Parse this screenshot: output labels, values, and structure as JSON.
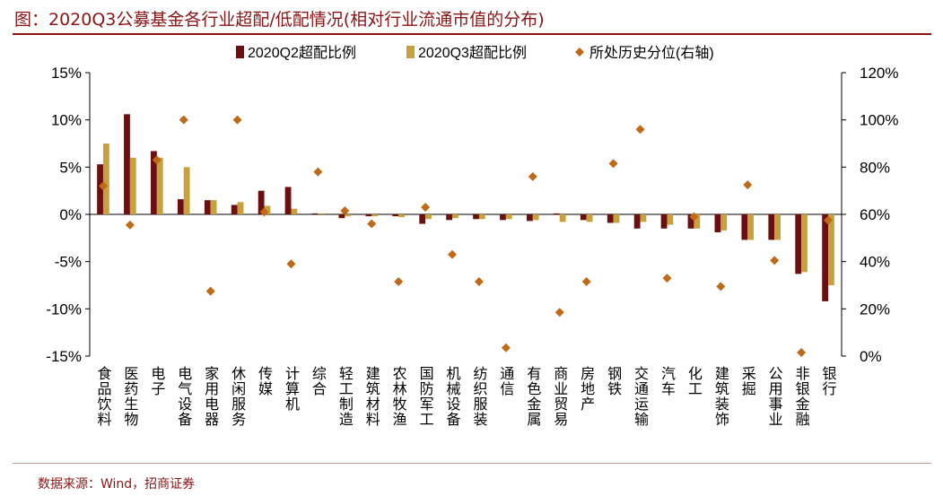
{
  "title": "图：2020Q3公募基金各行业超配/低配情况(相对行业流通市值的分布)",
  "source": "数据来源：Wind，招商证券",
  "colors": {
    "q2": "#6B0F11",
    "q3": "#C9A13C",
    "pct": "#C06A18",
    "title": "#8B1414",
    "axis": "#000000"
  },
  "chart_data": {
    "type": "bar",
    "categories": [
      "食品饮料",
      "医药生物",
      "电子",
      "电气设备",
      "家用电器",
      "休闲服务",
      "传媒",
      "计算机",
      "综合",
      "轻工制造",
      "建筑材料",
      "农林牧渔",
      "国防军工",
      "机械设备",
      "纺织服装",
      "通信",
      "有色金属",
      "商业贸易",
      "房地产",
      "钢铁",
      "交通运输",
      "汽车",
      "化工",
      "建筑装饰",
      "采掘",
      "公用事业",
      "非银金融",
      "银行"
    ],
    "series": [
      {
        "name": "2020Q2超配比例",
        "type": "bar",
        "axis": "left",
        "values": [
          5.3,
          10.6,
          6.7,
          1.6,
          1.5,
          1.0,
          2.5,
          2.9,
          0.1,
          -0.4,
          -0.2,
          -0.2,
          -1.0,
          -0.6,
          -0.5,
          -0.6,
          -0.7,
          0.1,
          -0.6,
          -0.9,
          -1.5,
          -1.5,
          -1.5,
          -1.9,
          -2.7,
          -2.7,
          -6.3,
          -9.2
        ]
      },
      {
        "name": "2020Q3超配比例",
        "type": "bar",
        "axis": "left",
        "values": [
          7.5,
          6.0,
          6.0,
          5.0,
          1.5,
          1.3,
          0.9,
          0.6,
          0.1,
          -0.2,
          -0.2,
          -0.3,
          -0.5,
          -0.4,
          -0.5,
          -0.5,
          -0.6,
          -0.8,
          -0.8,
          -0.9,
          -0.8,
          -1.1,
          -1.5,
          -1.7,
          -2.7,
          -2.7,
          -6.1,
          -7.5
        ]
      },
      {
        "name": "所处历史分位(右轴)",
        "type": "scatter",
        "axis": "right",
        "values": [
          72,
          55.5,
          83,
          100,
          27.5,
          100,
          61,
          39,
          78,
          61.5,
          56,
          31.5,
          63,
          43,
          31.5,
          3.5,
          76,
          18.5,
          31.5,
          81.5,
          96,
          33,
          59,
          29.5,
          72.5,
          40.5,
          1.5,
          57.5
        ]
      }
    ],
    "left_axis": {
      "min": -15,
      "max": 15,
      "step": 5,
      "format": "percent"
    },
    "right_axis": {
      "min": 0,
      "max": 120,
      "step": 20,
      "format": "percent"
    },
    "legend": "top-center",
    "grid": false
  }
}
